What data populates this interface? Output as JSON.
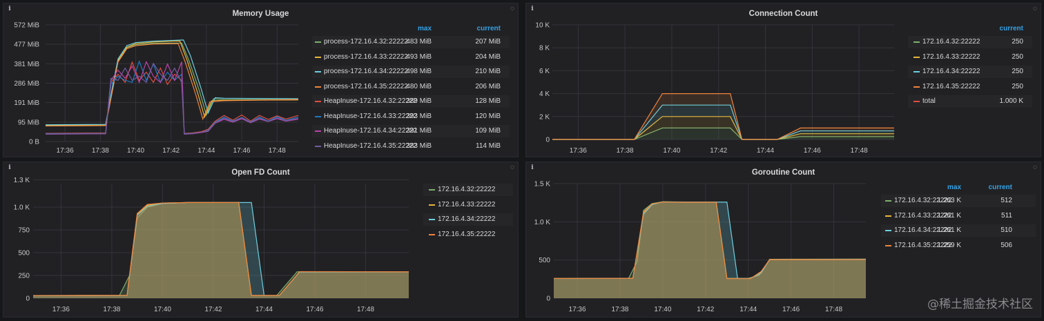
{
  "panels": [
    {
      "id": "memory",
      "title": "Memory Usage",
      "legend_headers": [
        "max",
        "current"
      ],
      "legend": [
        {
          "name": "process-172.16.4.32:22222",
          "color": "#7eb26d",
          "max": "483 MiB",
          "current": "207 MiB"
        },
        {
          "name": "process-172.16.4.33:22222",
          "color": "#eab839",
          "max": "493 MiB",
          "current": "204 MiB"
        },
        {
          "name": "process-172.16.4.34:22222",
          "color": "#6ed0e0",
          "max": "498 MiB",
          "current": "210 MiB"
        },
        {
          "name": "process-172.16.4.35:22222",
          "color": "#ef843c",
          "max": "480 MiB",
          "current": "206 MiB"
        },
        {
          "name": "HeapInuse-172.16.4.32:22222",
          "color": "#e24d42",
          "max": "389 MiB",
          "current": "128 MiB"
        },
        {
          "name": "HeapInuse-172.16.4.33:22222",
          "color": "#1f78c1",
          "max": "393 MiB",
          "current": "120 MiB"
        },
        {
          "name": "HeapInuse-172.16.4.34:22222",
          "color": "#ba43a9",
          "max": "391 MiB",
          "current": "109 MiB"
        },
        {
          "name": "HeapInuse-172.16.4.35:22222",
          "color": "#705da0",
          "max": "383 MiB",
          "current": "114 MiB"
        }
      ]
    },
    {
      "id": "conn",
      "title": "Connection Count",
      "legend_headers": [
        "current"
      ],
      "legend": [
        {
          "name": "172.16.4.32:22222",
          "color": "#7eb26d",
          "current": "250"
        },
        {
          "name": "172.16.4.33:22222",
          "color": "#eab839",
          "current": "250"
        },
        {
          "name": "172.16.4.34:22222",
          "color": "#6ed0e0",
          "current": "250"
        },
        {
          "name": "172.16.4.35:22222",
          "color": "#ef843c",
          "current": "250"
        },
        {
          "name": "total",
          "color": "#e24d42",
          "current": "1.000 K"
        }
      ]
    },
    {
      "id": "fd",
      "title": "Open FD Count",
      "legend_headers": [],
      "legend": [
        {
          "name": "172.16.4.32:22222",
          "color": "#7eb26d"
        },
        {
          "name": "172.16.4.33:22222",
          "color": "#eab839"
        },
        {
          "name": "172.16.4.34:22222",
          "color": "#6ed0e0"
        },
        {
          "name": "172.16.4.35:22222",
          "color": "#ef843c"
        }
      ]
    },
    {
      "id": "gor",
      "title": "Goroutine Count",
      "legend_headers": [
        "max",
        "current"
      ],
      "legend": [
        {
          "name": "172.16.4.32:22222",
          "color": "#7eb26d",
          "max": "1.263 K",
          "current": "512"
        },
        {
          "name": "172.16.4.33:22222",
          "color": "#eab839",
          "max": "1.261 K",
          "current": "511"
        },
        {
          "name": "172.16.4.34:22222",
          "color": "#6ed0e0",
          "max": "1.261 K",
          "current": "510"
        },
        {
          "name": "172.16.4.35:22222",
          "color": "#ef843c",
          "max": "1.259 K",
          "current": "506"
        }
      ]
    }
  ],
  "chart_data": [
    {
      "type": "line",
      "title": "Memory Usage",
      "y_ticks": [
        "0 B",
        "95 MiB",
        "191 MiB",
        "286 MiB",
        "381 MiB",
        "477 MiB",
        "572 MiB"
      ],
      "x_ticks": [
        "17:36",
        "17:38",
        "17:40",
        "17:42",
        "17:44",
        "17:46",
        "17:48"
      ],
      "ylim": [
        0,
        572
      ],
      "xlim": [
        34.9,
        49.2
      ],
      "series": [
        {
          "name": "process-172.16.4.32:22222",
          "x": [
            34.9,
            38.3,
            38.7,
            39.0,
            39.5,
            40.0,
            41.0,
            42.6,
            43.0,
            43.6,
            44.0,
            44.4,
            45.0,
            49.2
          ],
          "values": [
            80,
            82,
            270,
            400,
            460,
            475,
            482,
            483,
            400,
            250,
            130,
            210,
            205,
            207
          ]
        },
        {
          "name": "process-172.16.4.33:22222",
          "x": [
            34.9,
            38.3,
            38.7,
            39.0,
            39.5,
            40.0,
            41.0,
            42.5,
            42.9,
            43.5,
            43.9,
            44.3,
            45.0,
            49.2
          ],
          "values": [
            78,
            80,
            260,
            395,
            462,
            480,
            488,
            493,
            400,
            240,
            120,
            200,
            202,
            204
          ]
        },
        {
          "name": "process-172.16.4.34:22222",
          "x": [
            34.9,
            38.3,
            38.7,
            39.0,
            39.5,
            40.0,
            41.0,
            42.7,
            43.1,
            43.7,
            44.1,
            44.5,
            45.0,
            49.2
          ],
          "values": [
            82,
            84,
            275,
            405,
            470,
            485,
            492,
            498,
            420,
            260,
            140,
            215,
            212,
            210
          ]
        },
        {
          "name": "process-172.16.4.35:22222",
          "x": [
            34.9,
            38.3,
            38.7,
            39.0,
            39.5,
            40.0,
            41.0,
            42.4,
            42.8,
            43.4,
            43.8,
            44.2,
            45.0,
            49.2
          ],
          "values": [
            76,
            78,
            255,
            390,
            455,
            470,
            478,
            480,
            390,
            230,
            110,
            195,
            200,
            206
          ]
        },
        {
          "name": "HeapInuse-172.16.4.32:22222",
          "x": [
            34.9,
            38.3,
            38.6,
            39.0,
            39.4,
            39.8,
            40.2,
            40.6,
            41.0,
            41.4,
            41.8,
            42.2,
            42.6,
            42.75,
            43.2,
            43.7,
            44.1,
            44.5,
            45.0,
            45.5,
            46.0,
            46.5,
            47.0,
            47.5,
            48.0,
            48.5,
            49.2
          ],
          "values": [
            40,
            42,
            290,
            330,
            290,
            389,
            300,
            340,
            290,
            360,
            280,
            330,
            300,
            40,
            42,
            48,
            60,
            100,
            128,
            105,
            130,
            100,
            128,
            108,
            126,
            110,
            128
          ]
        },
        {
          "name": "HeapInuse-172.16.4.33:22222",
          "x": [
            34.9,
            38.3,
            38.6,
            39.0,
            39.4,
            39.8,
            40.2,
            40.6,
            41.0,
            41.4,
            41.8,
            42.2,
            42.6,
            42.75,
            43.2,
            43.7,
            44.1,
            44.5,
            45.0,
            45.5,
            46.0,
            46.5,
            47.0,
            47.5,
            48.0,
            48.5,
            49.2
          ],
          "values": [
            38,
            40,
            280,
            320,
            300,
            290,
            393,
            300,
            380,
            290,
            340,
            300,
            330,
            38,
            40,
            45,
            55,
            95,
            120,
            100,
            118,
            96,
            120,
            100,
            122,
            104,
            120
          ]
        },
        {
          "name": "HeapInuse-172.16.4.34:22222",
          "x": [
            34.9,
            38.3,
            38.6,
            39.0,
            39.4,
            39.8,
            40.2,
            40.6,
            41.0,
            41.4,
            41.8,
            42.2,
            42.6,
            42.75,
            43.2,
            43.7,
            44.1,
            44.5,
            45.0,
            45.5,
            46.0,
            46.5,
            47.0,
            47.5,
            48.0,
            48.5,
            49.2
          ],
          "values": [
            36,
            38,
            300,
            350,
            310,
            370,
            290,
            391,
            320,
            290,
            380,
            300,
            391,
            36,
            38,
            44,
            50,
            90,
            109,
            95,
            112,
            92,
            110,
            98,
            112,
            100,
            109
          ]
        },
        {
          "name": "HeapInuse-172.16.4.35:22222",
          "x": [
            34.9,
            38.3,
            38.6,
            39.0,
            39.4,
            39.8,
            40.2,
            40.6,
            41.0,
            41.4,
            41.8,
            42.2,
            42.6,
            42.75,
            43.2,
            43.7,
            44.1,
            44.5,
            45.0,
            45.5,
            46.0,
            46.5,
            47.0,
            47.5,
            48.0,
            48.5,
            49.2
          ],
          "values": [
            37,
            39,
            310,
            300,
            360,
            300,
            320,
            290,
            383,
            330,
            300,
            360,
            290,
            37,
            39,
            46,
            52,
            92,
            114,
            98,
            116,
            94,
            114,
            99,
            116,
            102,
            114
          ]
        }
      ]
    },
    {
      "type": "area",
      "title": "Connection Count",
      "y_ticks": [
        "0",
        "2 K",
        "4 K",
        "6 K",
        "8 K",
        "10 K"
      ],
      "x_ticks": [
        "17:36",
        "17:38",
        "17:40",
        "17:42",
        "17:44",
        "17:46",
        "17:48"
      ],
      "ylim": [
        0,
        10000
      ],
      "xlim": [
        34.9,
        49.5
      ],
      "stacked": true,
      "series": [
        {
          "name": "172.16.4.32:22222",
          "x": [
            34.9,
            38.4,
            39.0,
            39.6,
            42.5,
            43.0,
            44.5,
            45.5,
            49.5
          ],
          "values": [
            0,
            0,
            500,
            1000,
            1000,
            0,
            0,
            250,
            250
          ]
        },
        {
          "name": "172.16.4.33:22222",
          "x": [
            34.9,
            38.4,
            39.0,
            39.6,
            42.5,
            43.0,
            44.5,
            45.5,
            49.5
          ],
          "values": [
            0,
            0,
            500,
            1000,
            1000,
            0,
            0,
            250,
            250
          ]
        },
        {
          "name": "172.16.4.34:22222",
          "x": [
            34.9,
            38.4,
            39.0,
            39.6,
            42.5,
            43.0,
            44.5,
            45.5,
            49.5
          ],
          "values": [
            0,
            0,
            500,
            1000,
            1000,
            0,
            0,
            250,
            250
          ]
        },
        {
          "name": "172.16.4.35:22222",
          "x": [
            34.9,
            38.4,
            39.0,
            39.6,
            42.5,
            43.0,
            44.5,
            45.5,
            49.5
          ],
          "values": [
            0,
            0,
            500,
            1000,
            1000,
            0,
            0,
            250,
            250
          ]
        }
      ]
    },
    {
      "type": "area",
      "title": "Open FD Count",
      "y_ticks": [
        "0",
        "250",
        "500",
        "750",
        "1.0 K",
        "1.3 K"
      ],
      "x_ticks": [
        "17:36",
        "17:38",
        "17:40",
        "17:42",
        "17:44",
        "17:46",
        "17:48"
      ],
      "ylim": [
        0,
        1250
      ],
      "xlim": [
        34.9,
        49.7
      ],
      "series": [
        {
          "name": "172.16.4.32:22222",
          "x": [
            34.9,
            38.3,
            38.7,
            39.0,
            39.4,
            40.0,
            41.0,
            43.0,
            43.5,
            44.5,
            45.3,
            49.7
          ],
          "values": [
            28,
            30,
            250,
            880,
            1000,
            1040,
            1050,
            1050,
            30,
            30,
            290,
            290
          ]
        },
        {
          "name": "172.16.4.33:22222",
          "x": [
            34.9,
            38.6,
            39.0,
            39.4,
            40.0,
            41.0,
            43.0,
            43.5,
            44.6,
            45.4,
            49.7
          ],
          "values": [
            29,
            31,
            920,
            1020,
            1045,
            1050,
            1050,
            30,
            30,
            290,
            290
          ]
        },
        {
          "name": "172.16.4.34:22222",
          "x": [
            34.9,
            38.6,
            39.0,
            39.4,
            40.0,
            41.0,
            43.5,
            44.0,
            44.6,
            45.4,
            49.7
          ],
          "values": [
            28,
            30,
            910,
            1010,
            1040,
            1050,
            1050,
            30,
            30,
            288,
            290
          ]
        },
        {
          "name": "172.16.4.35:22222",
          "x": [
            34.9,
            38.6,
            39.0,
            39.4,
            40.0,
            41.0,
            43.0,
            43.5,
            44.6,
            45.4,
            49.7
          ],
          "values": [
            30,
            32,
            930,
            1030,
            1045,
            1050,
            1050,
            31,
            31,
            292,
            290
          ]
        }
      ]
    },
    {
      "type": "area",
      "title": "Goroutine Count",
      "y_ticks": [
        "0",
        "500",
        "1.0 K",
        "1.5 K"
      ],
      "x_ticks": [
        "17:36",
        "17:38",
        "17:40",
        "17:42",
        "17:44",
        "17:46",
        "17:48"
      ],
      "ylim": [
        0,
        1500
      ],
      "xlim": [
        34.9,
        49.5
      ],
      "series": [
        {
          "name": "172.16.4.32:22222",
          "x": [
            34.9,
            38.4,
            38.8,
            39.1,
            39.5,
            40.0,
            41.0,
            42.5,
            43.0,
            44.0,
            44.5,
            45.0,
            49.5
          ],
          "values": [
            258,
            260,
            480,
            1150,
            1240,
            1263,
            1260,
            1260,
            260,
            260,
            300,
            510,
            512
          ]
        },
        {
          "name": "172.16.4.33:22222",
          "x": [
            34.9,
            38.6,
            39.1,
            39.5,
            40.0,
            41.0,
            42.5,
            43.0,
            44.1,
            44.6,
            45.0,
            49.5
          ],
          "values": [
            259,
            261,
            1120,
            1230,
            1261,
            1258,
            1258,
            258,
            258,
            340,
            508,
            511
          ]
        },
        {
          "name": "172.16.4.34:22222",
          "x": [
            34.9,
            38.6,
            39.1,
            39.5,
            40.0,
            41.0,
            43.0,
            43.5,
            44.1,
            44.6,
            45.0,
            49.5
          ],
          "values": [
            257,
            259,
            1100,
            1225,
            1261,
            1258,
            1258,
            258,
            258,
            330,
            506,
            510
          ]
        },
        {
          "name": "172.16.4.35:22222",
          "x": [
            34.9,
            38.6,
            39.1,
            39.5,
            40.0,
            41.0,
            42.5,
            43.0,
            44.1,
            44.6,
            45.0,
            49.5
          ],
          "values": [
            258,
            260,
            1130,
            1235,
            1259,
            1256,
            1256,
            256,
            256,
            350,
            505,
            506
          ]
        }
      ]
    }
  ],
  "watermark": "@稀土掘金技术社区"
}
